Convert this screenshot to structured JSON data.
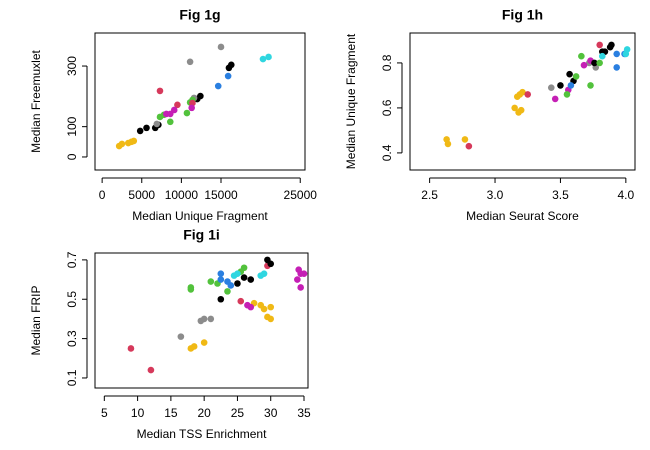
{
  "chart_data": [
    {
      "type": "scatter",
      "title": "Fig 1g",
      "x_label": "Median Unique Fragment",
      "y_label": "Median Freemuxlet",
      "x": [
        2150,
        2500,
        3300,
        3700,
        4000,
        4800,
        5600,
        6700,
        7100,
        12000,
        12400,
        16000,
        16300,
        6900,
        11100,
        15000,
        11600,
        7300,
        7800,
        8600,
        10700,
        11100,
        11400,
        7300,
        9500,
        11400,
        8100,
        8600,
        9100,
        11300,
        14650,
        15900,
        20300,
        21000
      ],
      "values": [
        36,
        43,
        46,
        50,
        53,
        86,
        96,
        96,
        106,
        191,
        201,
        294,
        304,
        109,
        314,
        363,
        195,
        132,
        139,
        116,
        145,
        180,
        188,
        218,
        172,
        178,
        142,
        142,
        155,
        162,
        234,
        267,
        323,
        330
      ],
      "colors": [
        "#f0b915",
        "#f0b915",
        "#f0b915",
        "#f0b915",
        "#f0b915",
        "#000000",
        "#000000",
        "#000000",
        "#000000",
        "#000000",
        "#000000",
        "#000000",
        "#000000",
        "#8c8c8c",
        "#8c8c8c",
        "#8c8c8c",
        "#8c8c8c",
        "#52c23c",
        "#52c23c",
        "#52c23c",
        "#52c23c",
        "#52c23c",
        "#52c23c",
        "#d6395b",
        "#d6395b",
        "#d6395b",
        "#c51fb5",
        "#c51fb5",
        "#c51fb5",
        "#c51fb5",
        "#2a7fe0",
        "#2a7fe0",
        "#2fd6e0",
        "#2fd6e0"
      ],
      "xlim": [
        -900,
        25600
      ],
      "ylim": [
        -43,
        409
      ],
      "xticks": [
        0,
        5000,
        10000,
        15000,
        25000
      ],
      "yticks": [
        0,
        100,
        300
      ]
    },
    {
      "type": "scatter",
      "title": "Fig 1h",
      "x_label": "Median Seurat Score",
      "y_label": "Median Unique Fragment",
      "x": [
        2.63,
        2.64,
        2.77,
        3.15,
        3.18,
        3.2,
        3.17,
        3.19,
        3.21,
        2.8,
        3.25,
        3.8,
        3.43,
        3.72,
        3.77,
        3.46,
        3.56,
        3.68,
        3.73,
        3.5,
        3.57,
        3.6,
        3.76,
        3.82,
        3.84,
        3.88,
        3.89,
        3.55,
        3.62,
        3.66,
        3.73,
        3.8,
        3.58,
        3.93,
        3.93,
        3.99,
        3.82,
        4.0,
        4.01
      ],
      "values": [
        0.46,
        0.44,
        0.46,
        0.6,
        0.58,
        0.59,
        0.65,
        0.66,
        0.67,
        0.43,
        0.66,
        0.88,
        0.69,
        0.8,
        0.78,
        0.64,
        0.68,
        0.79,
        0.81,
        0.7,
        0.75,
        0.72,
        0.8,
        0.85,
        0.85,
        0.87,
        0.88,
        0.66,
        0.74,
        0.83,
        0.7,
        0.8,
        0.7,
        0.78,
        0.84,
        0.84,
        0.83,
        0.84,
        0.86
      ],
      "colors": [
        "#f0b915",
        "#f0b915",
        "#f0b915",
        "#f0b915",
        "#f0b915",
        "#f0b915",
        "#f0b915",
        "#f0b915",
        "#f0b915",
        "#d6395b",
        "#d6395b",
        "#d6395b",
        "#8c8c8c",
        "#8c8c8c",
        "#8c8c8c",
        "#c51fb5",
        "#c51fb5",
        "#c51fb5",
        "#c51fb5",
        "#000000",
        "#000000",
        "#000000",
        "#000000",
        "#000000",
        "#000000",
        "#000000",
        "#000000",
        "#52c23c",
        "#52c23c",
        "#52c23c",
        "#52c23c",
        "#52c23c",
        "#2a7fe0",
        "#2a7fe0",
        "#2a7fe0",
        "#2a7fe0",
        "#2fd6e0",
        "#2fd6e0",
        "#2fd6e0"
      ],
      "xlim": [
        2.35,
        4.07
      ],
      "ylim": [
        0.324,
        0.933
      ],
      "xticks": [
        2.5,
        {
          "value": 3,
          "label": "3.0"
        },
        3.5,
        {
          "value": 4,
          "label": "4.0"
        }
      ],
      "yticks": [
        0.4,
        0.6,
        0.8
      ]
    },
    {
      "type": "scatter",
      "title": "Fig 1i",
      "x_label": "Median TSS Enrichment",
      "y_label": "Median FRIP",
      "x": [
        9,
        12,
        25.5,
        29.5,
        16.5,
        19.5,
        20,
        21,
        18,
        18.5,
        20,
        27.5,
        28.5,
        29,
        29.5,
        30,
        30,
        18,
        18,
        21,
        22,
        23.5,
        25.5,
        26,
        22.5,
        22.5,
        23.5,
        24,
        24.5,
        25,
        28.5,
        29,
        22.5,
        25,
        26,
        27,
        29.5,
        30,
        26.5,
        27,
        34,
        34.5,
        35,
        34.5,
        34.2
      ],
      "values": [
        0.25,
        0.14,
        0.49,
        0.67,
        0.31,
        0.39,
        0.4,
        0.4,
        0.25,
        0.26,
        0.28,
        0.48,
        0.47,
        0.45,
        0.41,
        0.4,
        0.46,
        0.55,
        0.56,
        0.59,
        0.58,
        0.54,
        0.64,
        0.66,
        0.63,
        0.6,
        0.59,
        0.57,
        0.62,
        0.63,
        0.62,
        0.63,
        0.5,
        0.58,
        0.61,
        0.6,
        0.7,
        0.68,
        0.47,
        0.46,
        0.6,
        0.63,
        0.63,
        0.56,
        0.65
      ],
      "colors": [
        "#d6395b",
        "#d6395b",
        "#d6395b",
        "#d6395b",
        "#8c8c8c",
        "#8c8c8c",
        "#8c8c8c",
        "#8c8c8c",
        "#f0b915",
        "#f0b915",
        "#f0b915",
        "#f0b915",
        "#f0b915",
        "#f0b915",
        "#f0b915",
        "#f0b915",
        "#f0b915",
        "#52c23c",
        "#52c23c",
        "#52c23c",
        "#52c23c",
        "#52c23c",
        "#52c23c",
        "#52c23c",
        "#2a7fe0",
        "#2a7fe0",
        "#2a7fe0",
        "#2a7fe0",
        "#2fd6e0",
        "#2fd6e0",
        "#2fd6e0",
        "#2fd6e0",
        "#000000",
        "#000000",
        "#000000",
        "#000000",
        "#000000",
        "#000000",
        "#c51fb5",
        "#c51fb5",
        "#c51fb5",
        "#c51fb5",
        "#c51fb5",
        "#c51fb5",
        "#c51fb5"
      ],
      "xlim": [
        3.6,
        35.6
      ],
      "ylim": [
        0.049,
        0.735
      ],
      "xticks": [
        5,
        10,
        15,
        20,
        25,
        30,
        35
      ],
      "yticks": [
        0.1,
        0.3,
        0.5,
        0.7
      ]
    }
  ]
}
